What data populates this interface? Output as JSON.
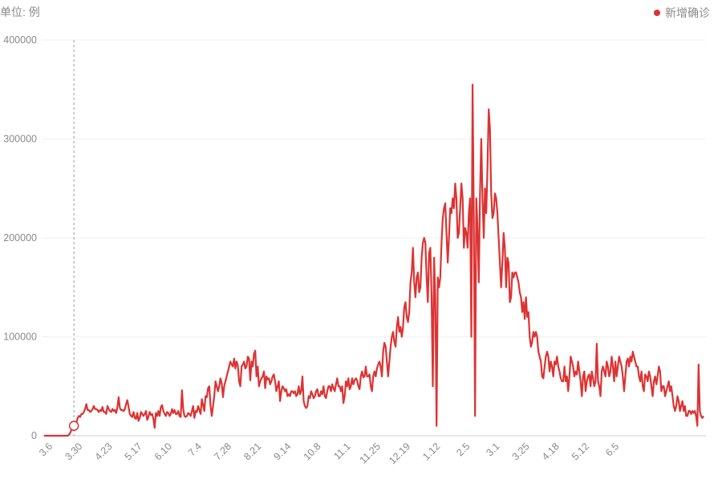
{
  "unit_label": "单位: 例",
  "legend": {
    "label": "新增确诊",
    "color": "#dd3333"
  },
  "chart_data": {
    "type": "line",
    "series": [
      {
        "name": "新增确诊",
        "color": "#dd3333",
        "values": [
          0,
          0,
          0,
          0,
          0,
          0,
          0,
          0,
          0,
          0,
          0,
          0,
          0,
          0,
          0,
          0,
          0,
          0,
          0,
          0,
          1000,
          3000,
          6000,
          7000,
          10000,
          11000,
          13000,
          18000,
          20000,
          19000,
          22000,
          22000,
          24000,
          27000,
          32000,
          26000,
          26000,
          24000,
          25000,
          27000,
          30000,
          27000,
          27000,
          26000,
          24000,
          26000,
          25000,
          29000,
          24000,
          24000,
          22000,
          30000,
          27000,
          25000,
          24000,
          27000,
          25000,
          26000,
          23000,
          29000,
          39000,
          28000,
          26000,
          26000,
          25000,
          27000,
          32000,
          36000,
          29000,
          22000,
          20000,
          19000,
          24000,
          18000,
          17000,
          23000,
          15000,
          18000,
          24000,
          22000,
          20000,
          22000,
          25000,
          16000,
          19000,
          24000,
          21000,
          22000,
          17000,
          8000,
          23000,
          20000,
          25000,
          20000,
          29000,
          31000,
          25000,
          22000,
          20000,
          24000,
          23000,
          20000,
          22000,
          27000,
          23000,
          26000,
          22000,
          22000,
          25000,
          20000,
          19000,
          46000,
          27000,
          20000,
          19000,
          20000,
          23000,
          22000,
          20000,
          25000,
          30000,
          18000,
          25000,
          24000,
          30000,
          26000,
          22000,
          37000,
          31000,
          25000,
          40000,
          39000,
          48000,
          50000,
          30000,
          20000,
          30000,
          40000,
          55000,
          50000,
          45000,
          50000,
          58000,
          53000,
          39000,
          50000,
          55000,
          60000,
          65000,
          70000,
          75000,
          72000,
          70000,
          78000,
          68000,
          75000,
          71000,
          55000,
          50000,
          70000,
          72000,
          75000,
          68000,
          70000,
          80000,
          78000,
          56000,
          75000,
          70000,
          83000,
          86000,
          60000,
          70000,
          50000,
          55000,
          58000,
          60000,
          65000,
          48000,
          60000,
          57000,
          58000,
          52000,
          55000,
          60000,
          62000,
          55000,
          45000,
          50000,
          55000,
          35000,
          45000,
          50000,
          48000,
          45000,
          47000,
          40000,
          42000,
          40000,
          45000,
          45000,
          43000,
          45000,
          40000,
          42000,
          50000,
          42000,
          45000,
          60000,
          35000,
          30000,
          28000,
          30000,
          40000,
          38000,
          45000,
          42000,
          38000,
          40000,
          45000,
          47000,
          40000,
          40000,
          45000,
          42000,
          50000,
          40000,
          38000,
          45000,
          50000,
          50000,
          45000,
          52000,
          48000,
          45000,
          52000,
          58000,
          50000,
          50000,
          45000,
          50000,
          33000,
          40000,
          55000,
          50000,
          58000,
          47000,
          50000,
          58000,
          52000,
          56000,
          58000,
          56000,
          50000,
          47000,
          60000,
          65000,
          59000,
          60000,
          70000,
          60000,
          60000,
          62000,
          50000,
          45000,
          60000,
          65000,
          60000,
          68000,
          72000,
          75000,
          70000,
          60000,
          85000,
          94000,
          90000,
          75000,
          60000,
          75000,
          90000,
          100000,
          105000,
          95000,
          90000,
          110000,
          120000,
          105000,
          110000,
          100000,
          110000,
          130000,
          135000,
          120000,
          115000,
          125000,
          155000,
          165000,
          190000,
          155000,
          140000,
          160000,
          165000,
          145000,
          150000,
          180000,
          195000,
          200000,
          195000,
          160000,
          135000,
          185000,
          190000,
          140000,
          50000,
          180000,
          140000,
          10000,
          160000,
          150000,
          160000,
          195000,
          220000,
          230000,
          235000,
          205000,
          175000,
          200000,
          230000,
          225000,
          240000,
          230000,
          255000,
          240000,
          200000,
          205000,
          230000,
          255000,
          240000,
          190000,
          210000,
          205000,
          190000,
          225000,
          240000,
          100000,
          355000,
          220000,
          20000,
          240000,
          210000,
          155000,
          245000,
          300000,
          240000,
          200000,
          250000,
          225000,
          270000,
          330000,
          310000,
          245000,
          220000,
          225000,
          245000,
          240000,
          225000,
          200000,
          175000,
          150000,
          175000,
          205000,
          190000,
          150000,
          180000,
          175000,
          135000,
          140000,
          165000,
          160000,
          165000,
          165000,
          160000,
          155000,
          145000,
          140000,
          125000,
          135000,
          118000,
          140000,
          120000,
          125000,
          100000,
          90000,
          95000,
          105000,
          100000,
          105000,
          100000,
          85000,
          80000,
          75000,
          60000,
          58000,
          70000,
          80000,
          85000,
          80000,
          65000,
          75000,
          70000,
          60000,
          75000,
          72000,
          80000,
          70000,
          65000,
          58000,
          55000,
          55000,
          70000,
          55000,
          60000,
          45000,
          60000,
          80000,
          75000,
          70000,
          60000,
          65000,
          62000,
          75000,
          65000,
          55000,
          40000,
          60000,
          65000,
          45000,
          55000,
          60000,
          62000,
          50000,
          65000,
          58000,
          50000,
          55000,
          93000,
          55000,
          50000,
          40000,
          65000,
          70000,
          65000,
          60000,
          75000,
          70000,
          60000,
          65000,
          80000,
          70000,
          55000,
          75000,
          60000,
          70000,
          80000,
          75000,
          70000,
          60000,
          45000,
          60000,
          75000,
          78000,
          70000,
          80000,
          75000,
          85000,
          80000,
          75000,
          70000,
          70000,
          60000,
          55000,
          65000,
          50000,
          45000,
          62000,
          60000,
          55000,
          65000,
          60000,
          50000,
          40000,
          55000,
          60000,
          52000,
          60000,
          70000,
          65000,
          45000,
          50000,
          50000,
          40000,
          45000,
          50000,
          55000,
          45000,
          50000,
          40000,
          30000,
          25000,
          30000,
          40000,
          35000,
          25000,
          30000,
          35000,
          25000,
          30000,
          20000,
          20000,
          25000,
          25000,
          22000,
          25000,
          23000,
          25000,
          20000,
          10000,
          72000,
          25000,
          20000,
          18000,
          20000
        ]
      }
    ],
    "x_tick_labels": [
      "3.6",
      "3.30",
      "4.23",
      "5.17",
      "6.10",
      "7.4",
      "7.28",
      "8.21",
      "9.14",
      "10.8",
      "11.1",
      "11.25",
      "12.19",
      "1.12",
      "2.5",
      "3.1",
      "3.25",
      "4.18",
      "5.12",
      "6.5"
    ],
    "x_tick_interval": 24,
    "y_tick_labels": [
      "0",
      "100000",
      "200000",
      "300000",
      "400000"
    ],
    "ylim": [
      0,
      400000
    ],
    "grid": true,
    "legend_position": "top-right",
    "highlight_index": 24,
    "highlight_label": "3.30"
  }
}
